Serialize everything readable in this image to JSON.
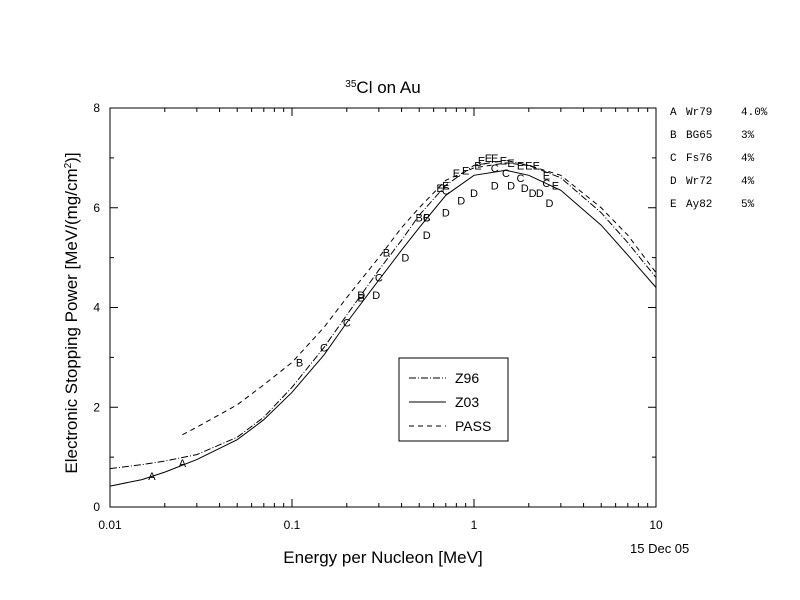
{
  "chart_data": {
    "type": "scatter",
    "title_prefix": "35",
    "title_text": "Cl on Au",
    "xlabel": "Energy per Nucleon [MeV]",
    "ylabel_main": "Electronic Stopping Power [MeV/(mg/cm",
    "ylabel_sup": "2",
    "ylabel_end": ")]",
    "x_scale": "log",
    "xlim": [
      0.01,
      10
    ],
    "ylim": [
      0,
      8
    ],
    "x_ticks": [
      {
        "value": 0.01,
        "label": "0.01"
      },
      {
        "value": 0.1,
        "label": "0.1"
      },
      {
        "value": 1,
        "label": "1"
      },
      {
        "value": 10,
        "label": "10"
      }
    ],
    "y_ticks": [
      {
        "value": 0,
        "label": "0"
      },
      {
        "value": 2,
        "label": "2"
      },
      {
        "value": 4,
        "label": "4"
      },
      {
        "value": 6,
        "label": "6"
      },
      {
        "value": 8,
        "label": "8"
      }
    ],
    "date_stamp": "15 Dec 05",
    "series": [
      {
        "name": "Z96",
        "kind": "line",
        "style": "dashdot",
        "color": "#000000",
        "x": [
          0.01,
          0.015,
          0.02,
          0.03,
          0.05,
          0.07,
          0.1,
          0.15,
          0.2,
          0.3,
          0.4,
          0.5,
          0.7,
          1.0,
          1.5,
          2.0,
          3.0,
          5.0,
          7.0,
          10.0
        ],
        "y": [
          0.77,
          0.85,
          0.92,
          1.05,
          1.4,
          1.8,
          2.4,
          3.2,
          3.85,
          4.75,
          5.35,
          5.85,
          6.45,
          6.85,
          6.95,
          6.85,
          6.6,
          5.9,
          5.3,
          4.6
        ]
      },
      {
        "name": "Z03",
        "kind": "line",
        "style": "solid",
        "color": "#000000",
        "x": [
          0.01,
          0.015,
          0.02,
          0.03,
          0.05,
          0.07,
          0.1,
          0.15,
          0.2,
          0.3,
          0.4,
          0.5,
          0.7,
          1.0,
          1.5,
          2.0,
          3.0,
          5.0,
          7.0,
          10.0
        ],
        "y": [
          0.42,
          0.55,
          0.7,
          0.95,
          1.35,
          1.75,
          2.3,
          3.05,
          3.7,
          4.55,
          5.15,
          5.6,
          6.25,
          6.65,
          6.75,
          6.65,
          6.35,
          5.65,
          5.05,
          4.4
        ]
      },
      {
        "name": "PASS",
        "kind": "line",
        "style": "dashed",
        "color": "#000000",
        "x": [
          0.025,
          0.03,
          0.05,
          0.07,
          0.1,
          0.15,
          0.2,
          0.3,
          0.4,
          0.5,
          0.7,
          1.0,
          1.5,
          2.0,
          3.0,
          5.0,
          7.0,
          10.0
        ],
        "y": [
          1.45,
          1.6,
          2.05,
          2.45,
          2.9,
          3.6,
          4.2,
          5.0,
          5.6,
          6.0,
          6.55,
          6.8,
          6.9,
          6.85,
          6.65,
          6.0,
          5.45,
          4.7
        ]
      },
      {
        "name": "A",
        "kind": "points",
        "marker": "A",
        "x": [
          0.017,
          0.025
        ],
        "y": [
          0.62,
          0.88
        ]
      },
      {
        "name": "B",
        "kind": "points",
        "marker": "B",
        "x": [
          0.11,
          0.24,
          0.33,
          0.5,
          0.55
        ],
        "y": [
          2.9,
          4.2,
          5.1,
          5.8,
          5.8
        ]
      },
      {
        "name": "C",
        "kind": "points",
        "marker": "C",
        "x": [
          0.15,
          0.2,
          0.3,
          0.55,
          0.7,
          1.3,
          1.5,
          1.8,
          2.5
        ],
        "y": [
          3.2,
          3.7,
          4.6,
          5.8,
          6.35,
          6.8,
          6.7,
          6.6,
          6.5
        ]
      },
      {
        "name": "D",
        "kind": "points",
        "marker": "D",
        "x": [
          0.24,
          0.29,
          0.42,
          0.55,
          0.7,
          0.85,
          1.0,
          1.3,
          1.6,
          1.9,
          2.1,
          2.3,
          2.6
        ],
        "y": [
          4.25,
          4.25,
          5.0,
          5.45,
          5.9,
          6.15,
          6.3,
          6.45,
          6.45,
          6.4,
          6.3,
          6.3,
          6.1
        ]
      },
      {
        "name": "E",
        "kind": "points",
        "marker": "E",
        "x": [
          0.65,
          0.7,
          0.8,
          0.9,
          1.05,
          1.1,
          1.2,
          1.3,
          1.45,
          1.6,
          1.8,
          2.0,
          2.2,
          2.5,
          2.8
        ],
        "y": [
          6.4,
          6.45,
          6.7,
          6.75,
          6.85,
          6.95,
          7.0,
          7.0,
          6.95,
          6.9,
          6.85,
          6.85,
          6.85,
          6.65,
          6.45
        ]
      }
    ],
    "curve_legend": {
      "placement": "center-bottom",
      "entries": [
        {
          "label": "Z96",
          "style": "dashdot"
        },
        {
          "label": "Z03",
          "style": "solid"
        },
        {
          "label": "PASS",
          "style": "dashed"
        }
      ]
    },
    "reference_legend": {
      "placement": "right-outside",
      "entries": [
        {
          "marker": "A",
          "ref": "Wr79",
          "error": "4.0%"
        },
        {
          "marker": "B",
          "ref": "BG65",
          "error": "3%"
        },
        {
          "marker": "C",
          "ref": "Fs76",
          "error": "4%"
        },
        {
          "marker": "D",
          "ref": "Wr72",
          "error": "4%"
        },
        {
          "marker": "E",
          "ref": "Ay82",
          "error": "5%"
        }
      ]
    }
  }
}
